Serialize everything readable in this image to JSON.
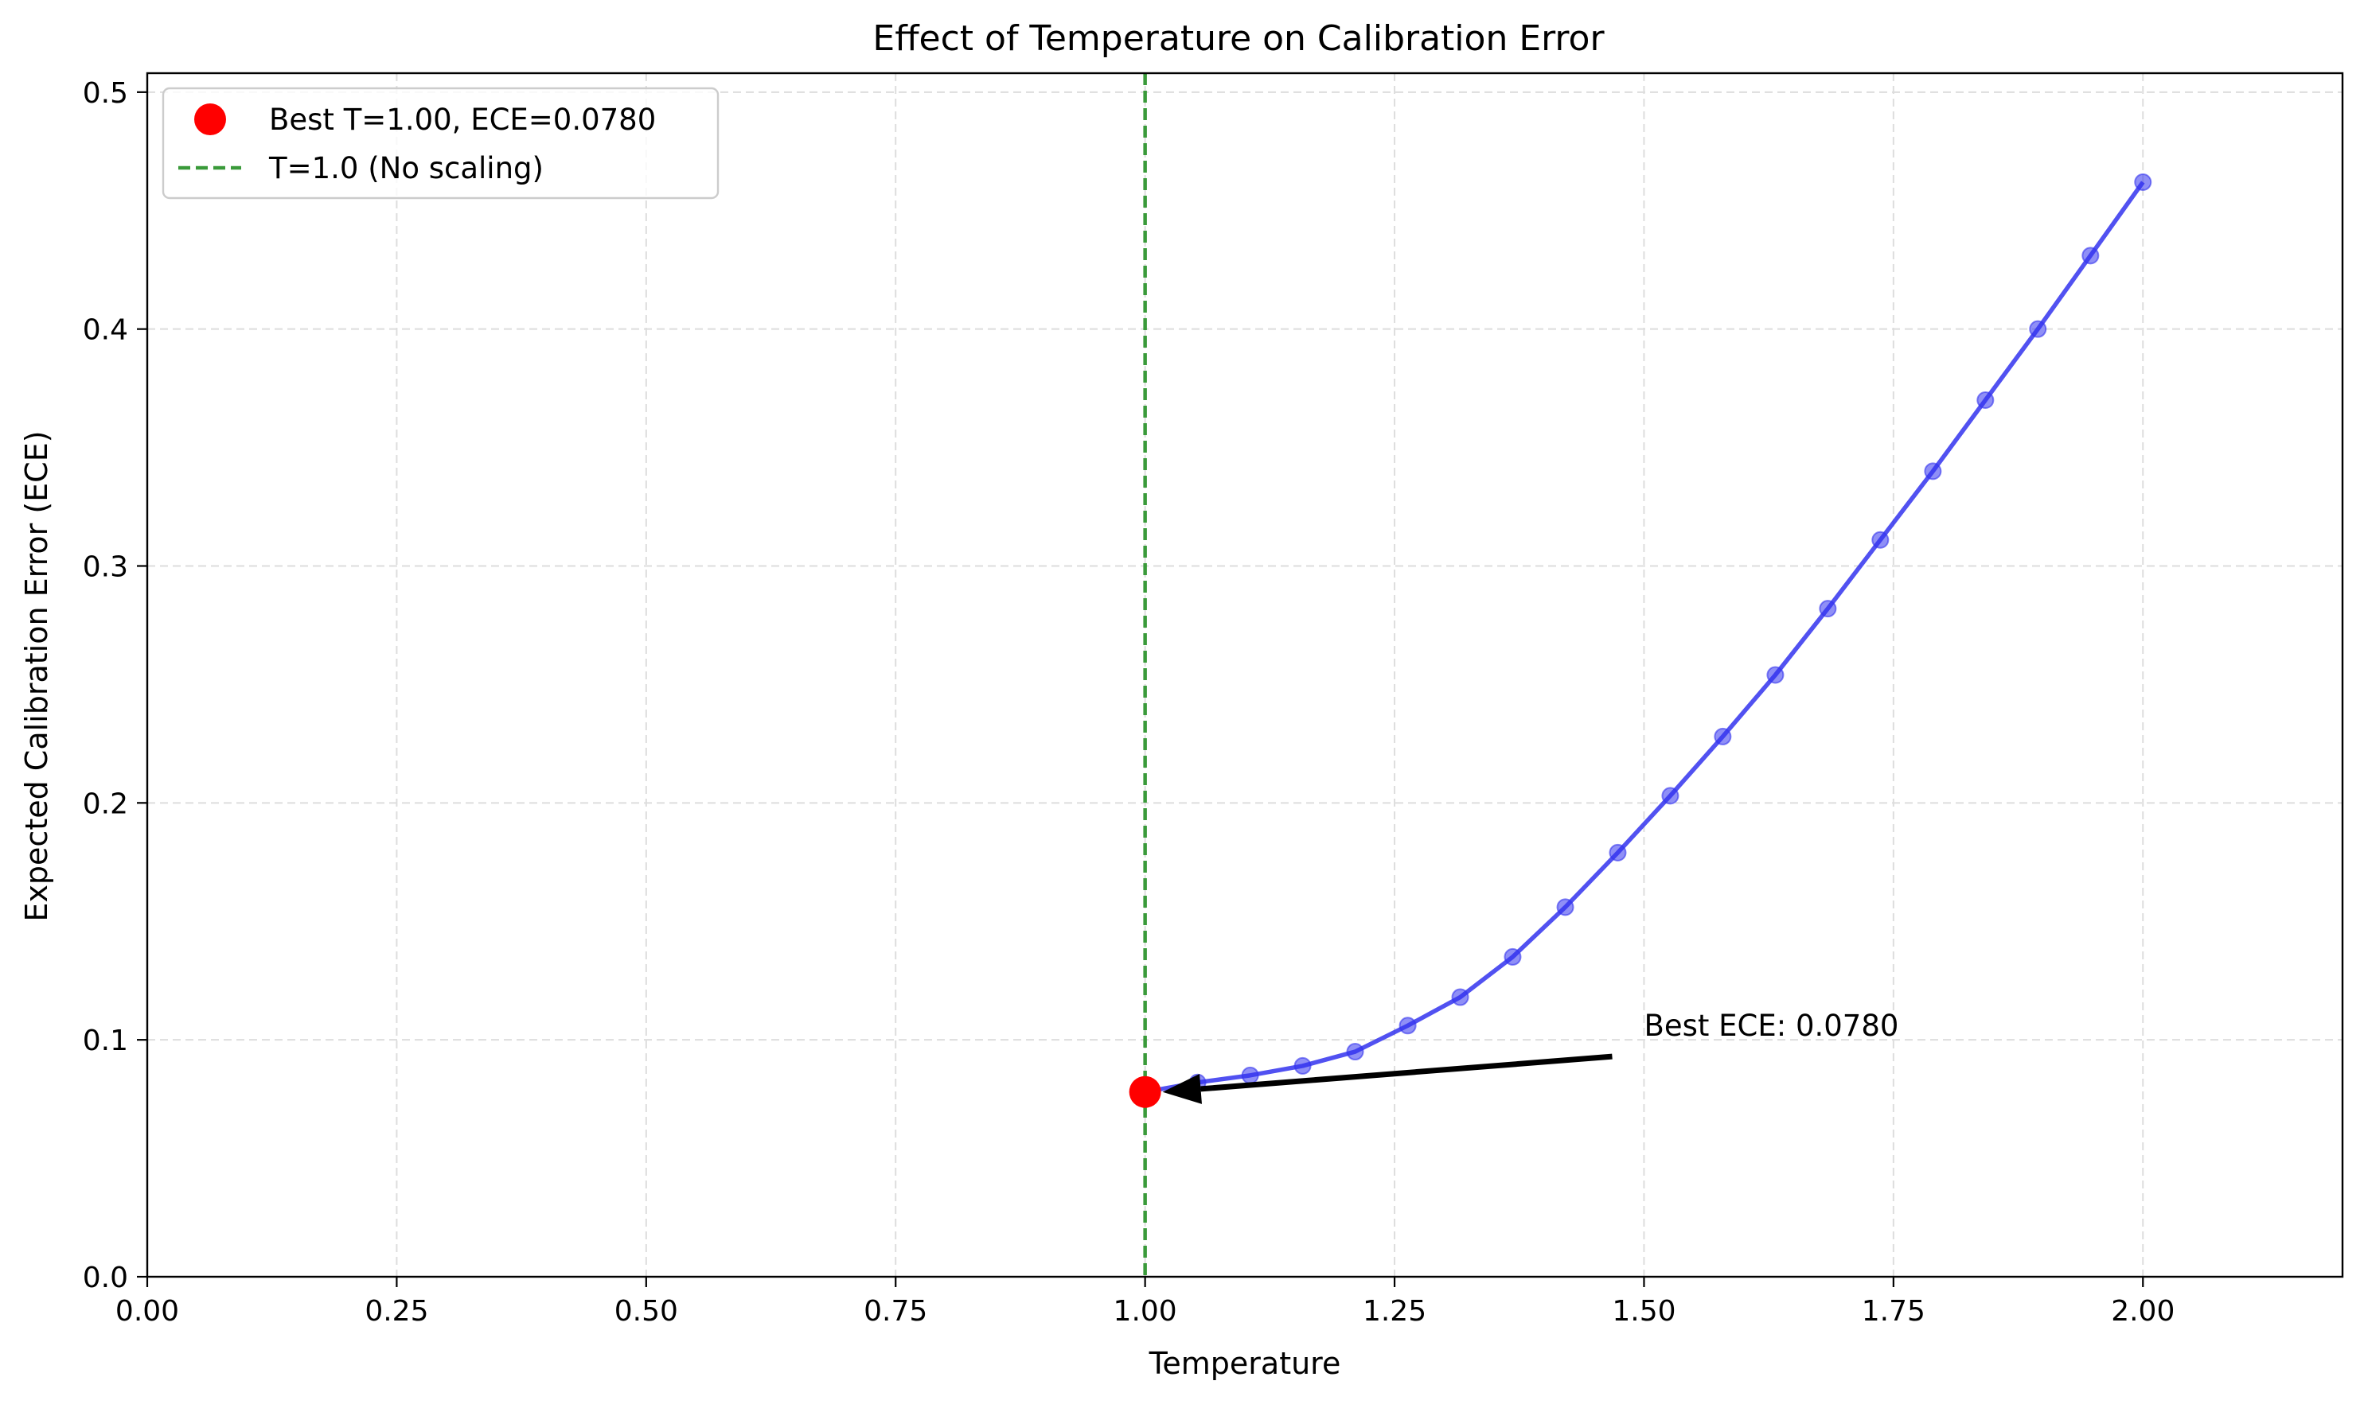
{
  "chart_data": {
    "type": "line",
    "title": "Effect of Temperature on Calibration Error",
    "xlabel": "Temperature",
    "ylabel": "Expected Calibration Error (ECE)",
    "xlim": [
      0.0,
      2.2
    ],
    "ylim": [
      0.0,
      0.508
    ],
    "xticks": [
      "0.00",
      "0.25",
      "0.50",
      "0.75",
      "1.00",
      "1.25",
      "1.50",
      "1.75",
      "2.00"
    ],
    "yticks": [
      "0.0",
      "0.1",
      "0.2",
      "0.3",
      "0.4",
      "0.5"
    ],
    "grid": true,
    "legend_position": "top-left",
    "series": [
      {
        "color": "#3333ee",
        "x": [
          1.0,
          1.0526,
          1.1053,
          1.1579,
          1.2105,
          1.2632,
          1.3158,
          1.3684,
          1.4211,
          1.4737,
          1.5263,
          1.5789,
          1.6316,
          1.6842,
          1.7368,
          1.7895,
          1.8421,
          1.8947,
          1.9474,
          2.0
        ],
        "y": [
          0.078,
          0.082,
          0.085,
          0.089,
          0.095,
          0.106,
          0.118,
          0.135,
          0.156,
          0.179,
          0.203,
          0.228,
          0.254,
          0.282,
          0.311,
          0.34,
          0.37,
          0.4,
          0.431,
          0.462
        ]
      }
    ],
    "best_point": {
      "x": 1.0,
      "y": 0.078,
      "label": "Best T=1.00, ECE=0.0780",
      "color": "#ff0000"
    },
    "reference_line": {
      "x": 1.0,
      "label": "T=1.0 (No scaling)",
      "color": "#3a9a3a"
    },
    "annotation": {
      "text": "Best ECE: 0.0780",
      "x": 1.5,
      "y": 0.1,
      "arrow_to": [
        1.0,
        0.078
      ]
    }
  }
}
